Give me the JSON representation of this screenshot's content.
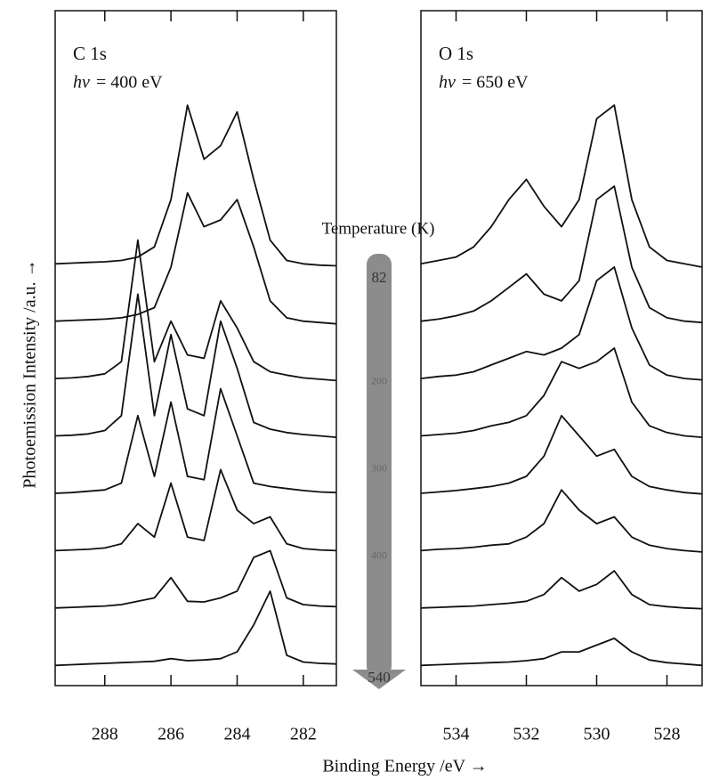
{
  "y_label": "Photoemission Intensity /a.u. →",
  "x_label": "Binding Energy /eV  →",
  "temperature": {
    "label": "Temperature (K)",
    "lim": [
      82,
      540
    ],
    "ticks": [
      82,
      200,
      300,
      400,
      540
    ]
  },
  "chart_data": [
    {
      "type": "line",
      "title": "C 1s",
      "photon_symbol": "hv",
      "photon_energy": "= 400 eV",
      "x": [
        289.5,
        289,
        288.5,
        288,
        287.5,
        287,
        286.5,
        286,
        285.5,
        285,
        284.5,
        284,
        283.5,
        283,
        282.5,
        282,
        281.5,
        281
      ],
      "xlim": [
        289.5,
        281
      ],
      "xticks": [
        288,
        286,
        284,
        282
      ],
      "ylim": [
        0,
        100
      ],
      "color": "#111111",
      "series": [
        {
          "values": [
            62.5,
            62.6,
            62.7,
            62.8,
            63,
            63.5,
            65,
            72,
            86,
            78,
            80,
            85,
            75,
            66,
            63,
            62.5,
            62.3,
            62.2
          ]
        },
        {
          "values": [
            54,
            54.1,
            54.2,
            54.3,
            54.5,
            55,
            56,
            62,
            73,
            68,
            69,
            72,
            65,
            57,
            54.5,
            54,
            53.8,
            53.6
          ]
        },
        {
          "values": [
            45.5,
            45.6,
            45.8,
            46.2,
            48,
            66,
            48,
            54,
            49,
            48.5,
            57,
            53,
            48,
            46.5,
            46,
            45.6,
            45.4,
            45.2
          ]
        },
        {
          "values": [
            37,
            37.1,
            37.3,
            37.8,
            40,
            58,
            40,
            52,
            41,
            40,
            54,
            47,
            39,
            38,
            37.5,
            37.2,
            37,
            36.8
          ]
        },
        {
          "values": [
            28.5,
            28.6,
            28.8,
            29,
            30,
            40,
            31,
            42,
            31,
            30.5,
            44,
            37,
            30,
            29.5,
            29.2,
            28.9,
            28.7,
            28.6
          ]
        },
        {
          "values": [
            20,
            20.1,
            20.2,
            20.4,
            21,
            24,
            22,
            30,
            22,
            21.5,
            32,
            26,
            24,
            25,
            21,
            20.3,
            20.1,
            20
          ]
        },
        {
          "values": [
            11.5,
            11.6,
            11.7,
            11.8,
            12,
            12.5,
            13,
            16,
            12.5,
            12.4,
            13,
            14,
            19,
            20,
            13,
            12,
            11.8,
            11.7
          ]
        },
        {
          "values": [
            3,
            3.1,
            3.2,
            3.3,
            3.4,
            3.5,
            3.6,
            4,
            3.7,
            3.8,
            4,
            5,
            9,
            14,
            4.5,
            3.5,
            3.3,
            3.2
          ]
        }
      ]
    },
    {
      "type": "line",
      "title": "O 1s",
      "photon_symbol": "hv",
      "photon_energy": "= 650 eV",
      "x": [
        535,
        534.5,
        534,
        533.5,
        533,
        532.5,
        532,
        531.5,
        531,
        530.5,
        530,
        529.5,
        529,
        528.5,
        528,
        527.5,
        527
      ],
      "xlim": [
        535,
        527
      ],
      "xticks": [
        534,
        532,
        530,
        528
      ],
      "ylim": [
        0,
        100
      ],
      "color": "#111111",
      "series": [
        {
          "values": [
            62.5,
            63,
            63.5,
            65,
            68,
            72,
            75,
            71,
            68,
            72,
            84,
            86,
            72,
            65,
            63,
            62.5,
            62
          ]
        },
        {
          "values": [
            54,
            54.3,
            54.8,
            55.5,
            57,
            59,
            61,
            58,
            57,
            60,
            72,
            74,
            62,
            56,
            54.5,
            54,
            53.8
          ]
        },
        {
          "values": [
            45.5,
            45.8,
            46,
            46.5,
            47.5,
            48.5,
            49.5,
            49,
            50,
            52,
            60,
            62,
            53,
            47.5,
            46,
            45.5,
            45.3
          ]
        },
        {
          "values": [
            37,
            37.2,
            37.4,
            37.8,
            38.5,
            39,
            40,
            43,
            48,
            47,
            48,
            50,
            42,
            38.5,
            37.5,
            37,
            36.8
          ]
        },
        {
          "values": [
            28.5,
            28.7,
            28.9,
            29.2,
            29.5,
            30,
            31,
            34,
            40,
            37,
            34,
            35,
            31,
            29.5,
            29,
            28.6,
            28.4
          ]
        },
        {
          "values": [
            20,
            20.2,
            20.3,
            20.5,
            20.8,
            21,
            22,
            24,
            29,
            26,
            24,
            25,
            22,
            20.8,
            20.3,
            20,
            19.8
          ]
        },
        {
          "values": [
            11.5,
            11.6,
            11.7,
            11.8,
            12,
            12.2,
            12.5,
            13.5,
            16,
            14,
            15,
            17,
            13.5,
            12,
            11.7,
            11.5,
            11.4
          ]
        },
        {
          "values": [
            3,
            3.1,
            3.2,
            3.3,
            3.4,
            3.5,
            3.7,
            4,
            5,
            5,
            6,
            7,
            5,
            3.8,
            3.4,
            3.2,
            3
          ]
        }
      ]
    }
  ]
}
